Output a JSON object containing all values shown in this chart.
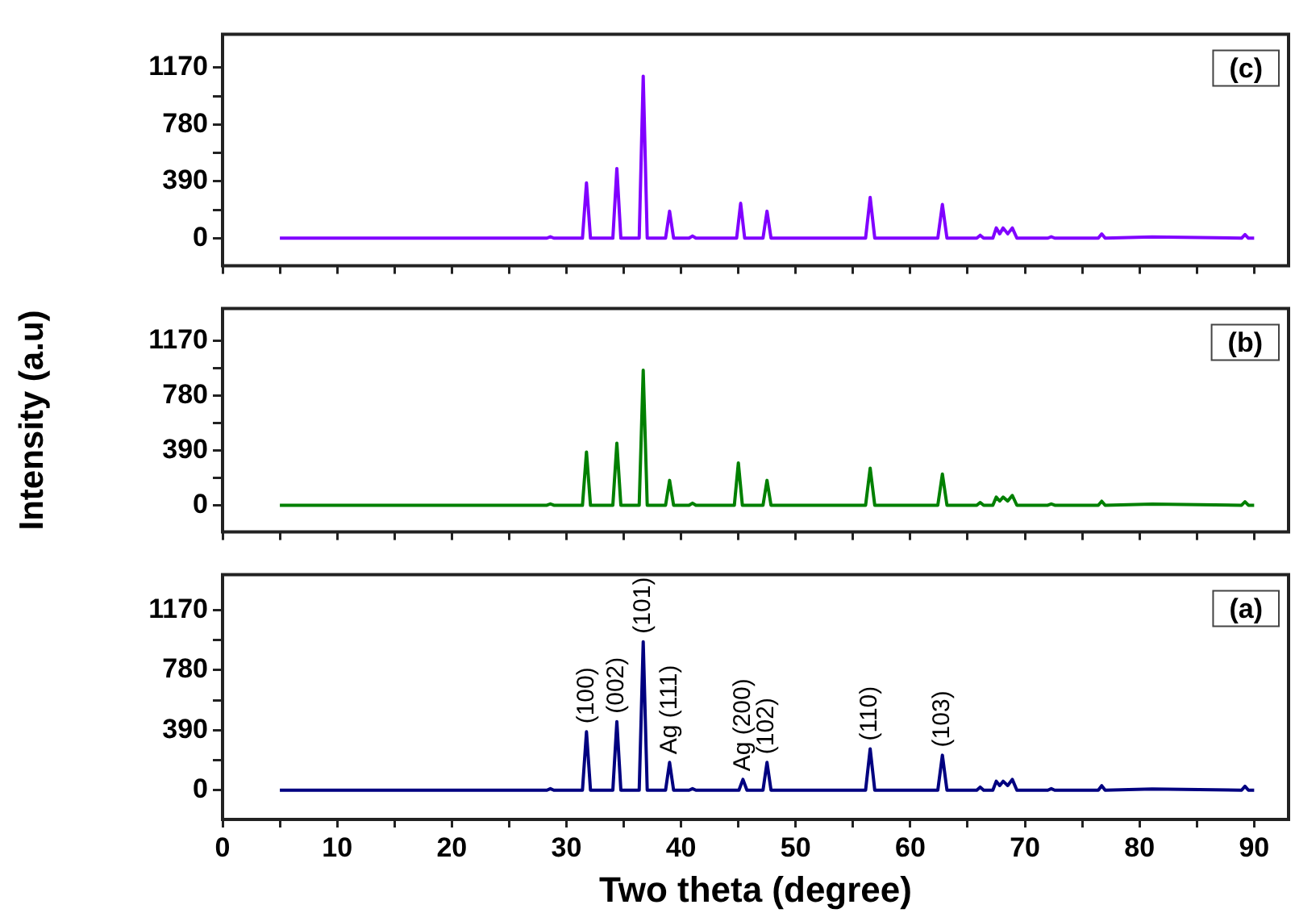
{
  "chart_data": [
    {
      "type": "line",
      "xlim": [
        0,
        93
      ],
      "ylim": [
        -190,
        1400
      ],
      "xticks": [
        0,
        {
          "value": 5,
          "label": null
        },
        10,
        {
          "value": 15,
          "label": null
        },
        20,
        {
          "value": 25,
          "label": null
        },
        30,
        {
          "value": 35,
          "label": null
        },
        40,
        {
          "value": 45,
          "label": null
        },
        50,
        {
          "value": 55,
          "label": null
        },
        60,
        {
          "value": 65,
          "label": null
        },
        70,
        {
          "value": 75,
          "label": null
        },
        80,
        {
          "value": 85,
          "label": null
        },
        90
      ],
      "yticks": [
        0,
        {
          "value": 195,
          "label": null
        },
        390,
        {
          "value": 585,
          "label": null
        },
        780,
        {
          "value": 975,
          "label": null
        },
        1170
      ],
      "tick_labels": "y",
      "legend": false,
      "marker": "none",
      "annotations": [
        "(c)"
      ],
      "series": [
        {
          "color": "#8000ff",
          "x": [
            5,
            20,
            28.3,
            28.6,
            28.9,
            31.4,
            31.75,
            32.1,
            34.05,
            34.4,
            34.75,
            36.35,
            36.7,
            37.05,
            38.65,
            39.0,
            39.35,
            40.7,
            41.0,
            41.3,
            44.85,
            45.2,
            45.55,
            47.15,
            47.5,
            47.85,
            56.1,
            56.5,
            56.9,
            62.4,
            62.8,
            63.2,
            65.8,
            66.1,
            66.4,
            67.2,
            67.5,
            67.8,
            68.1,
            68.5,
            68.9,
            69.3,
            72.0,
            72.3,
            72.6,
            76.4,
            76.7,
            77.0,
            81.1,
            88.9,
            89.2,
            89.5,
            90
          ],
          "values": [
            0,
            0,
            0,
            10,
            0,
            0,
            379,
            0,
            0,
            478,
            0,
            0,
            1112,
            0,
            0,
            185,
            0,
            0,
            15,
            0,
            0,
            239,
            0,
            0,
            185,
            0,
            0,
            280,
            0,
            0,
            231,
            0,
            0,
            20,
            0,
            0,
            70,
            30,
            70,
            30,
            70,
            0,
            0,
            10,
            0,
            0,
            29,
            0,
            8,
            0,
            25,
            0,
            0
          ]
        }
      ]
    },
    {
      "type": "line",
      "ylabel": "Intensity (a.u)",
      "xlim": [
        0,
        93
      ],
      "ylim": [
        -190,
        1400
      ],
      "xticks": [
        0,
        {
          "value": 5,
          "label": null
        },
        10,
        {
          "value": 15,
          "label": null
        },
        20,
        {
          "value": 25,
          "label": null
        },
        30,
        {
          "value": 35,
          "label": null
        },
        40,
        {
          "value": 45,
          "label": null
        },
        50,
        {
          "value": 55,
          "label": null
        },
        60,
        {
          "value": 65,
          "label": null
        },
        70,
        {
          "value": 75,
          "label": null
        },
        80,
        {
          "value": 85,
          "label": null
        },
        90
      ],
      "yticks": [
        0,
        {
          "value": 195,
          "label": null
        },
        390,
        {
          "value": 585,
          "label": null
        },
        780,
        {
          "value": 975,
          "label": null
        },
        1170
      ],
      "tick_labels": "y",
      "legend": false,
      "marker": "none",
      "annotations": [
        "(b)"
      ],
      "series": [
        {
          "color": "#008000",
          "x": [
            5,
            20,
            28.3,
            28.6,
            28.9,
            31.4,
            31.75,
            32.1,
            34.05,
            34.4,
            34.75,
            36.35,
            36.7,
            37.05,
            38.65,
            39.0,
            39.35,
            40.7,
            41.0,
            41.3,
            44.65,
            45.0,
            45.35,
            47.15,
            47.5,
            47.85,
            56.1,
            56.5,
            56.9,
            62.4,
            62.8,
            63.2,
            65.8,
            66.1,
            66.4,
            67.2,
            67.5,
            67.8,
            68.1,
            68.5,
            68.9,
            69.3,
            72.0,
            72.3,
            72.6,
            76.4,
            76.7,
            77.0,
            81.1,
            88.9,
            89.2,
            89.5,
            90
          ],
          "values": [
            0,
            0,
            0,
            10,
            0,
            0,
            379,
            0,
            0,
            441,
            0,
            0,
            960,
            0,
            0,
            177,
            0,
            0,
            15,
            0,
            0,
            301,
            0,
            0,
            177,
            0,
            0,
            264,
            0,
            0,
            222,
            0,
            0,
            20,
            0,
            0,
            58,
            30,
            58,
            30,
            70,
            0,
            0,
            10,
            0,
            0,
            29,
            0,
            8,
            0,
            25,
            0,
            0
          ]
        }
      ]
    },
    {
      "type": "line",
      "xlabel": "Two theta (degree)",
      "xlim": [
        0,
        93
      ],
      "ylim": [
        -190,
        1400
      ],
      "xticks": [
        0,
        {
          "value": 5,
          "label": null
        },
        10,
        {
          "value": 15,
          "label": null
        },
        20,
        {
          "value": 25,
          "label": null
        },
        30,
        {
          "value": 35,
          "label": null
        },
        40,
        {
          "value": 45,
          "label": null
        },
        50,
        {
          "value": 55,
          "label": null
        },
        60,
        {
          "value": 65,
          "label": null
        },
        70,
        {
          "value": 75,
          "label": null
        },
        80,
        {
          "value": 85,
          "label": null
        },
        90
      ],
      "yticks": [
        0,
        {
          "value": 195,
          "label": null
        },
        390,
        {
          "value": 585,
          "label": null
        },
        780,
        {
          "value": 975,
          "label": null
        },
        1170
      ],
      "legend": false,
      "marker": "none",
      "annotations": [
        "(a)",
        {
          "text": "(100)",
          "x": 31.75,
          "y": 379
        },
        {
          "text": "(002)",
          "x": 34.4,
          "y": 445
        },
        {
          "text": "(101)",
          "x": 36.7,
          "y": 964
        },
        {
          "text": "Ag (111)",
          "x": 39.0,
          "y": 181
        },
        {
          "text": "Ag (200)",
          "x": 45.4,
          "y": 70
        },
        {
          "text": "(102)",
          "x": 47.5,
          "y": 181
        },
        {
          "text": "(110)",
          "x": 56.5,
          "y": 268
        },
        {
          "text": "(103)",
          "x": 62.8,
          "y": 227
        }
      ],
      "series": [
        {
          "color": "#000080",
          "x": [
            5,
            20,
            28.3,
            28.6,
            28.9,
            31.4,
            31.75,
            32.1,
            34.05,
            34.4,
            34.75,
            36.35,
            36.7,
            37.05,
            38.65,
            39.0,
            39.35,
            40.7,
            41.0,
            41.3,
            45.05,
            45.4,
            45.75,
            47.15,
            47.5,
            47.85,
            56.1,
            56.5,
            56.9,
            62.4,
            62.8,
            63.2,
            65.8,
            66.1,
            66.4,
            67.2,
            67.5,
            67.8,
            68.1,
            68.5,
            68.9,
            69.3,
            72.0,
            72.3,
            72.6,
            76.4,
            76.7,
            77.0,
            81.1,
            88.9,
            89.2,
            89.5,
            90
          ],
          "values": [
            0,
            0,
            0,
            10,
            0,
            0,
            379,
            0,
            0,
            445,
            0,
            0,
            964,
            0,
            0,
            181,
            0,
            0,
            10,
            0,
            0,
            70,
            0,
            0,
            181,
            0,
            0,
            268,
            0,
            0,
            227,
            0,
            0,
            20,
            0,
            0,
            58,
            30,
            58,
            30,
            70,
            0,
            0,
            10,
            0,
            0,
            29,
            0,
            8,
            0,
            25,
            0,
            0
          ]
        }
      ]
    }
  ]
}
